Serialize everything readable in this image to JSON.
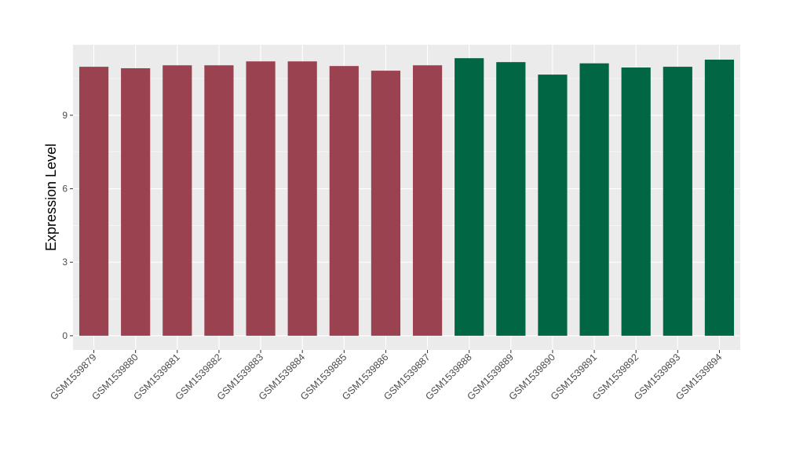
{
  "chart_data": {
    "type": "bar",
    "title": "",
    "xlabel": "",
    "ylabel": "Expression Level",
    "ylim": [
      -0.58,
      11.88
    ],
    "yticks": [
      0,
      3,
      6,
      9
    ],
    "grid": true,
    "categories": [
      "GSM1539879",
      "GSM1539880",
      "GSM1539881",
      "GSM1539882",
      "GSM1539883",
      "GSM1539884",
      "GSM1539885",
      "GSM1539886",
      "GSM1539887",
      "GSM1539888",
      "GSM1539889",
      "GSM1539890",
      "GSM1539891",
      "GSM1539892",
      "GSM1539893",
      "GSM1539894"
    ],
    "values": [
      10.98,
      10.92,
      11.04,
      11.04,
      11.2,
      11.2,
      11.01,
      10.82,
      11.04,
      11.33,
      11.17,
      10.66,
      11.12,
      10.95,
      10.98,
      11.27
    ],
    "bar_colors": [
      "#9b4250",
      "#9b4250",
      "#9b4250",
      "#9b4250",
      "#9b4250",
      "#9b4250",
      "#9b4250",
      "#9b4250",
      "#9b4250",
      "#006644",
      "#006644",
      "#006644",
      "#006644",
      "#006644",
      "#006644",
      "#006644"
    ],
    "panel_background": "#ebebeb"
  }
}
